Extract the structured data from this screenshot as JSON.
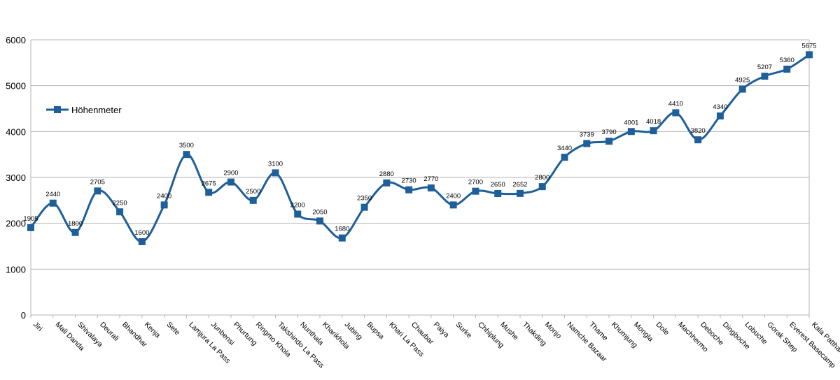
{
  "chart_data": {
    "type": "line",
    "title": "",
    "xlabel": "",
    "ylabel": "",
    "ylim": [
      0,
      6000
    ],
    "yticks": [
      0,
      1000,
      2000,
      3000,
      4000,
      5000,
      6000
    ],
    "grid": true,
    "smooth": true,
    "legend_position": "left",
    "series_color": "#1f5f99",
    "categories": [
      "Jiri",
      "Mali Danda",
      "Shivalaya",
      "Deurali",
      "Bhandhar",
      "Kenja",
      "Sete",
      "Lamjura La Pass",
      "Junbensi",
      "Phurtung",
      "Ringmo Khola",
      "Takshindo La Pass",
      "Nunthala",
      "Kharikhola",
      "Jubing",
      "Bupsa",
      "Khari La Pass",
      "Chaubar",
      "Paiya",
      "Surke",
      "Chhiplung",
      "Mushe",
      "Thakding",
      "Monjo",
      "Namche Bazaar",
      "Thame",
      "Khumjung",
      "Mongla",
      "Dole",
      "Machhermo",
      "Deboche",
      "Dingboche",
      "Lobuche",
      "Gorak Shep",
      "Everest Basecamp",
      "Kala Patthar"
    ],
    "series": [
      {
        "name": "Höhenmeter",
        "values": [
          1905,
          2440,
          1800,
          2705,
          2250,
          1600,
          2400,
          3500,
          2675,
          2900,
          2500,
          3100,
          2200,
          2050,
          1680,
          2350,
          2880,
          2730,
          2770,
          2400,
          2700,
          2650,
          2652,
          2800,
          3440,
          3739,
          3790,
          4001,
          4018,
          4410,
          3820,
          4340,
          4925,
          5207,
          5360,
          5675
        ]
      }
    ]
  }
}
